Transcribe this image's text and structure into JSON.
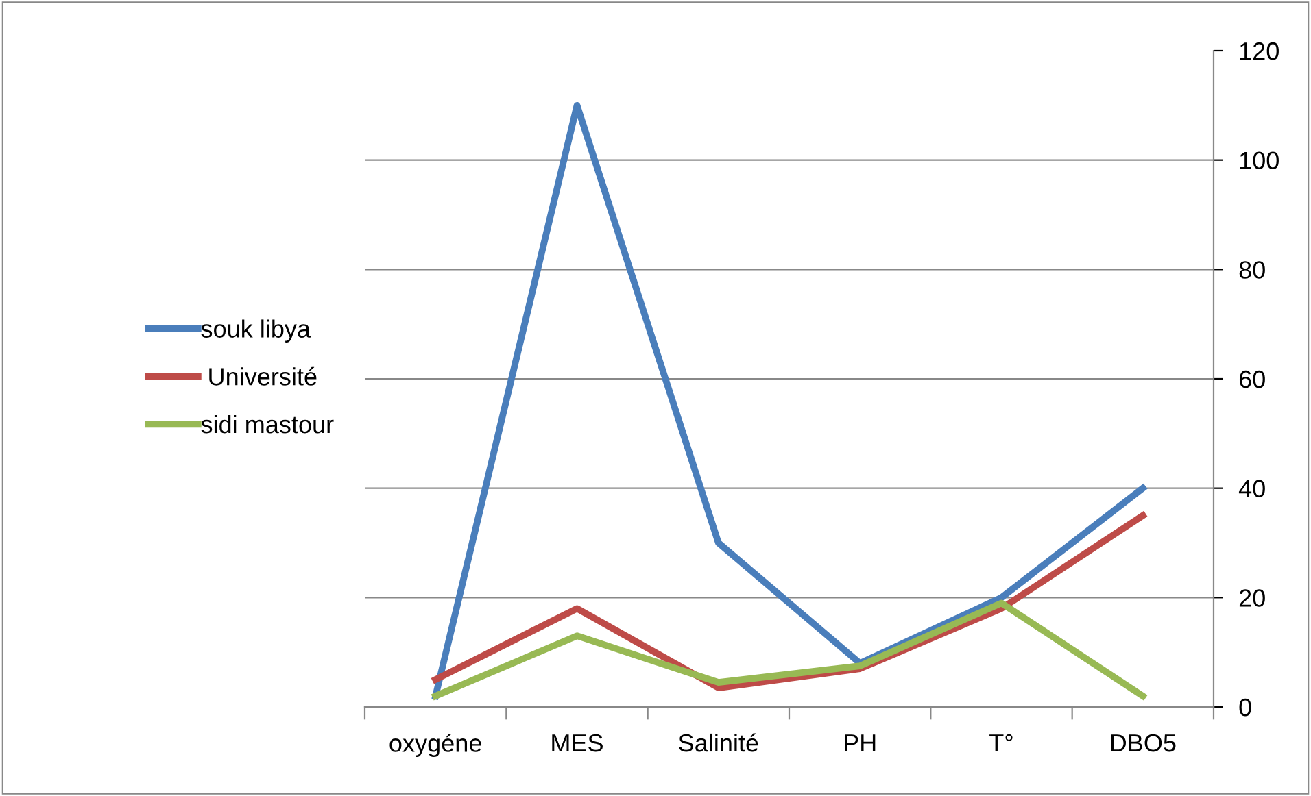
{
  "chart_data": {
    "type": "line",
    "categories": [
      "oxygéne",
      "MES",
      "Salinité",
      "PH",
      "T°",
      "DBO5"
    ],
    "series": [
      {
        "name": "souk libya",
        "color": "#4a7ebb",
        "values": [
          2,
          110,
          30,
          8,
          20,
          40
        ]
      },
      {
        "name": " Université",
        "color": "#be4b48",
        "values": [
          5,
          18,
          3.5,
          7,
          18,
          35
        ]
      },
      {
        "name": "sidi mastour",
        "color": "#98b954",
        "values": [
          2,
          13,
          4.5,
          7.5,
          19,
          2
        ]
      }
    ],
    "ylim": [
      0,
      120
    ],
    "yticks": [
      0,
      20,
      40,
      60,
      80,
      100,
      120
    ],
    "grid": "y",
    "legend": "left",
    "marker": "none",
    "line_style": "solid"
  }
}
